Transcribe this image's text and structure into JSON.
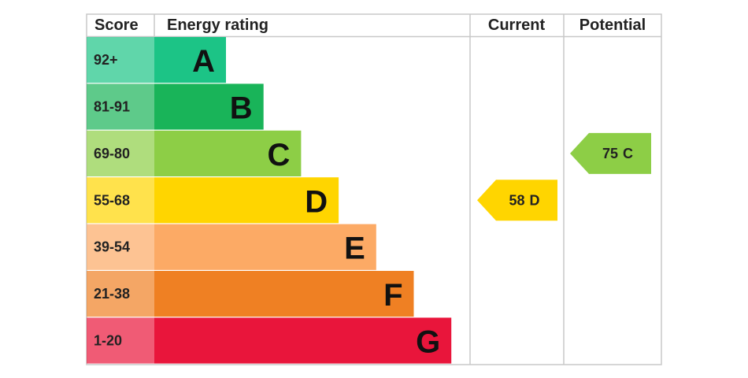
{
  "header": {
    "score": "Score",
    "rating": "Energy rating",
    "current": "Current",
    "potential": "Potential"
  },
  "bands": [
    {
      "score": "92+",
      "letter": "A",
      "color": "#1cc486"
    },
    {
      "score": "81-91",
      "letter": "B",
      "color": "#19b459"
    },
    {
      "score": "69-80",
      "letter": "C",
      "color": "#8dce46"
    },
    {
      "score": "55-68",
      "letter": "D",
      "color": "#ffd500"
    },
    {
      "score": "39-54",
      "letter": "E",
      "color": "#fcaa65"
    },
    {
      "score": "21-38",
      "letter": "F",
      "color": "#ef8023"
    },
    {
      "score": "1-20",
      "letter": "G",
      "color": "#e9153b"
    }
  ],
  "current": {
    "score": 58,
    "rating": "D"
  },
  "potential": {
    "score": 75,
    "rating": "C"
  }
}
